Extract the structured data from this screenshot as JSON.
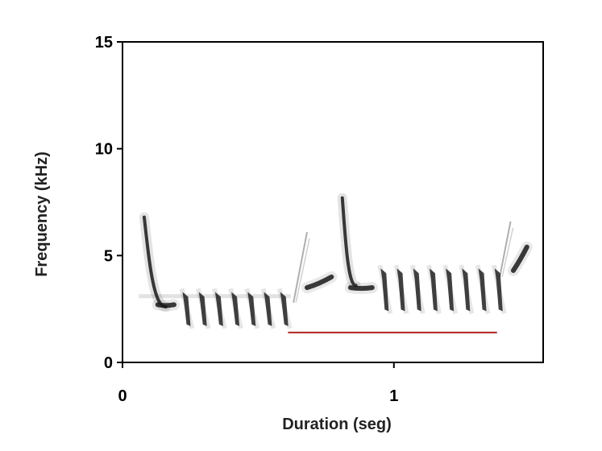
{
  "chart_data": {
    "type": "spectrogram",
    "xlabel": "Duration (seg)",
    "ylabel": "Frequency (kHz)",
    "xlim": [
      0,
      1.55
    ],
    "ylim": [
      0,
      15
    ],
    "x_ticks": [
      0,
      1
    ],
    "y_ticks": [
      0,
      5,
      10,
      15
    ],
    "grid": false,
    "line_color": "#b22222",
    "ink_color": "#1a1a1a",
    "marked_segment": {
      "x_start": 0.61,
      "x_end": 1.38,
      "y": 1.4
    },
    "elements": [
      {
        "kind": "down-sweep",
        "t_start": 0.08,
        "t_end": 0.16,
        "f_start": 6.8,
        "f_end": 2.6
      },
      {
        "kind": "tone",
        "t_start": 0.13,
        "t_end": 0.19,
        "f": 2.7
      },
      {
        "kind": "tone",
        "t_start": 0.06,
        "t_end": 0.62,
        "f": 3.1,
        "faint": true
      },
      {
        "kind": "notes",
        "f_high": 3.3,
        "f_low": 1.7,
        "times": [
          0.23,
          0.29,
          0.35,
          0.41,
          0.47,
          0.53,
          0.59
        ]
      },
      {
        "kind": "up-sweep",
        "t_start": 0.63,
        "t_end": 0.68,
        "f_start": 2.8,
        "f_end": 6.1,
        "faint": true
      },
      {
        "kind": "tone",
        "t_start": 0.68,
        "t_end": 0.77,
        "f_start": 3.5,
        "f_end": 4.0
      },
      {
        "kind": "down-sweep",
        "t_start": 0.81,
        "t_end": 0.86,
        "f_start": 7.7,
        "f_end": 3.6
      },
      {
        "kind": "tone",
        "t_start": 0.84,
        "t_end": 0.92,
        "f": 3.5
      },
      {
        "kind": "notes",
        "f_high": 4.4,
        "f_low": 2.4,
        "times": [
          0.96,
          1.02,
          1.08,
          1.14,
          1.2,
          1.26,
          1.32,
          1.38
        ]
      },
      {
        "kind": "up-sweep",
        "t_start": 1.39,
        "t_end": 1.43,
        "f_start": 4.0,
        "f_end": 6.6,
        "faint": true
      },
      {
        "kind": "tone",
        "t_start": 1.44,
        "t_end": 1.49,
        "f_start": 4.3,
        "f_end": 5.4
      }
    ]
  }
}
